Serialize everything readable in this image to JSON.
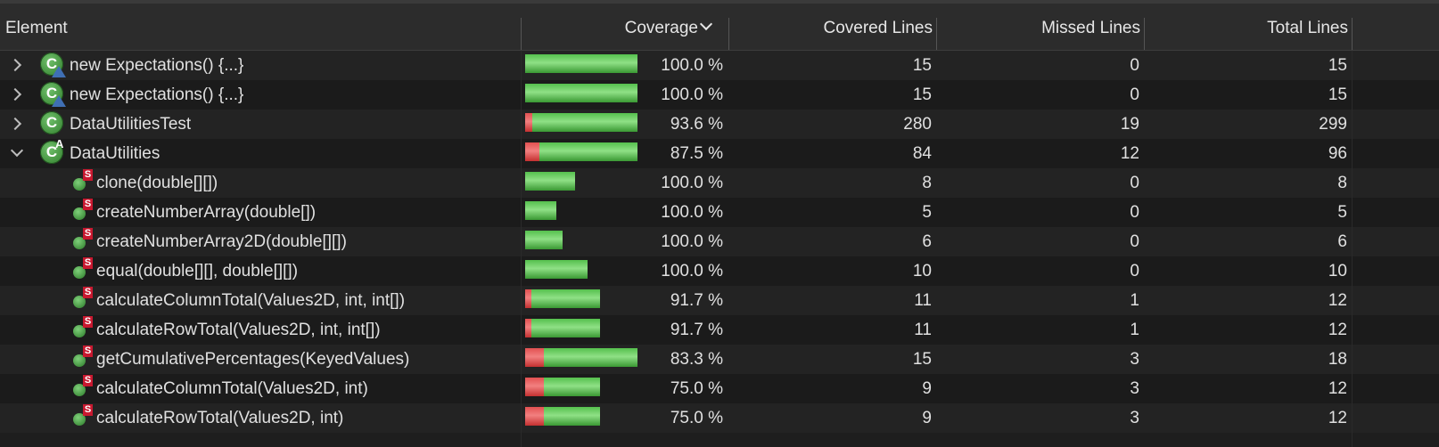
{
  "header": {
    "element": "Element",
    "coverage": "Coverage",
    "covered": "Covered Lines",
    "missed": "Missed Lines",
    "total": "Total Lines"
  },
  "rows": [
    {
      "label": "new Expectations() {...}",
      "coverage": "100.0 %",
      "covered": "15",
      "missed": "0",
      "total": "15",
      "kind": "anon",
      "expander": "collapsed",
      "ratio": 1.0,
      "barFraction": 1.0,
      "missedFraction": 0.0
    },
    {
      "label": "new Expectations() {...}",
      "coverage": "100.0 %",
      "covered": "15",
      "missed": "0",
      "total": "15",
      "kind": "anon",
      "expander": "collapsed",
      "ratio": 1.0,
      "barFraction": 1.0,
      "missedFraction": 0.0
    },
    {
      "label": "DataUtilitiesTest",
      "coverage": "93.6 %",
      "covered": "280",
      "missed": "19",
      "total": "299",
      "kind": "class",
      "expander": "collapsed",
      "ratio": 0.936,
      "barFraction": 1.0,
      "missedFraction": 0.064
    },
    {
      "label": "DataUtilities",
      "coverage": "87.5 %",
      "covered": "84",
      "missed": "12",
      "total": "96",
      "kind": "abstract",
      "expander": "expanded",
      "ratio": 0.875,
      "barFraction": 1.0,
      "missedFraction": 0.125
    },
    {
      "label": "clone(double[][])",
      "coverage": "100.0 %",
      "covered": "8",
      "missed": "0",
      "total": "8",
      "kind": "method",
      "expander": "none",
      "ratio": 1.0,
      "barFraction": 0.444,
      "missedFraction": 0.0
    },
    {
      "label": "createNumberArray(double[])",
      "coverage": "100.0 %",
      "covered": "5",
      "missed": "0",
      "total": "5",
      "kind": "method",
      "expander": "none",
      "ratio": 1.0,
      "barFraction": 0.278,
      "missedFraction": 0.0
    },
    {
      "label": "createNumberArray2D(double[][])",
      "coverage": "100.0 %",
      "covered": "6",
      "missed": "0",
      "total": "6",
      "kind": "method",
      "expander": "none",
      "ratio": 1.0,
      "barFraction": 0.333,
      "missedFraction": 0.0
    },
    {
      "label": "equal(double[][], double[][])",
      "coverage": "100.0 %",
      "covered": "10",
      "missed": "0",
      "total": "10",
      "kind": "method",
      "expander": "none",
      "ratio": 1.0,
      "barFraction": 0.556,
      "missedFraction": 0.0
    },
    {
      "label": "calculateColumnTotal(Values2D, int, int[])",
      "coverage": "91.7 %",
      "covered": "11",
      "missed": "1",
      "total": "12",
      "kind": "method",
      "expander": "none",
      "ratio": 0.917,
      "barFraction": 0.667,
      "missedFraction": 0.083
    },
    {
      "label": "calculateRowTotal(Values2D, int, int[])",
      "coverage": "91.7 %",
      "covered": "11",
      "missed": "1",
      "total": "12",
      "kind": "method",
      "expander": "none",
      "ratio": 0.917,
      "barFraction": 0.667,
      "missedFraction": 0.083
    },
    {
      "label": "getCumulativePercentages(KeyedValues)",
      "coverage": "83.3 %",
      "covered": "15",
      "missed": "3",
      "total": "18",
      "kind": "method",
      "expander": "none",
      "ratio": 0.833,
      "barFraction": 1.0,
      "missedFraction": 0.167
    },
    {
      "label": "calculateColumnTotal(Values2D, int)",
      "coverage": "75.0 %",
      "covered": "9",
      "missed": "3",
      "total": "12",
      "kind": "method",
      "expander": "none",
      "ratio": 0.75,
      "barFraction": 0.667,
      "missedFraction": 0.25
    },
    {
      "label": "calculateRowTotal(Values2D, int)",
      "coverage": "75.0 %",
      "covered": "9",
      "missed": "3",
      "total": "12",
      "kind": "method",
      "expander": "none",
      "ratio": 0.75,
      "barFraction": 0.667,
      "missedFraction": 0.25
    }
  ],
  "icons": {
    "class_letter": "C",
    "abstract_letter": "A",
    "static_letter": "S"
  },
  "colors": {
    "covered": "#55c04d",
    "missed": "#e25050",
    "class_icon": "#3a8f35",
    "static_badge": "#c8182f",
    "anon_triangle": "#3f6fb4"
  }
}
